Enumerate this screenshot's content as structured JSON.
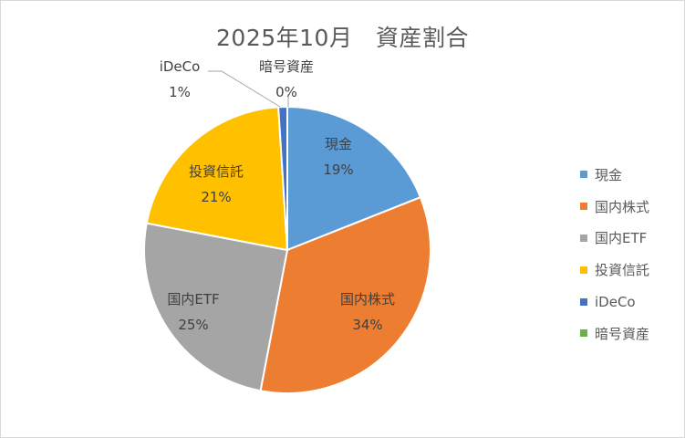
{
  "chart_data": {
    "type": "pie",
    "title": "2025年10月　資産割合",
    "legend_position": "right",
    "slices": [
      {
        "label": "現金",
        "value": 19,
        "percent_text": "19%",
        "color": "#5b9bd5"
      },
      {
        "label": "国内株式",
        "value": 34,
        "percent_text": "34%",
        "color": "#ed7d31"
      },
      {
        "label": "国内ETF",
        "value": 25,
        "percent_text": "25%",
        "color": "#a5a5a5"
      },
      {
        "label": "投資信託",
        "value": 21,
        "percent_text": "21%",
        "color": "#ffc000"
      },
      {
        "label": "iDeCo",
        "value": 1,
        "percent_text": "1%",
        "color": "#4472c4"
      },
      {
        "label": "暗号資産",
        "value": 0,
        "percent_text": "0%",
        "color": "#70ad47"
      }
    ]
  }
}
